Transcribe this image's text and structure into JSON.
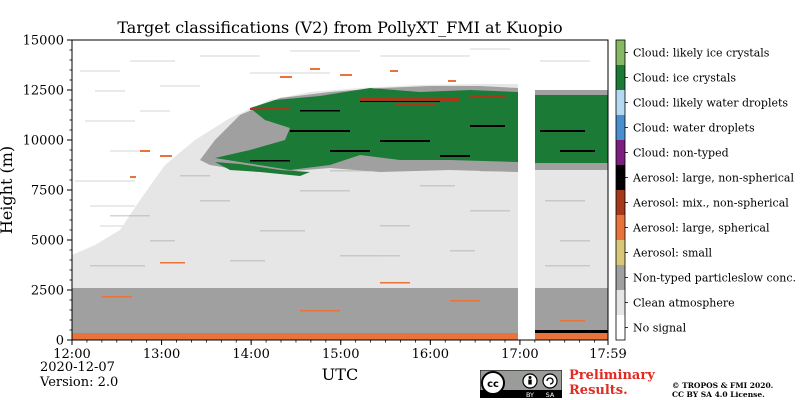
{
  "chart_data": {
    "type": "heatmap",
    "title": "Target classifications (V2) from PollyXT_FMI at Kuopio",
    "xlabel": "UTC",
    "ylabel": "Height (m)",
    "x_ticks": [
      "12:00",
      "13:00",
      "14:00",
      "15:00",
      "16:00",
      "17:00",
      "17:59"
    ],
    "y_ticks": [
      "0",
      "2500",
      "5000",
      "7500",
      "10000",
      "12500",
      "15000"
    ],
    "ylim": [
      0,
      15000
    ],
    "legend_placement": "right",
    "classes": [
      {
        "label": "No signal",
        "color": "#ffffff"
      },
      {
        "label": "Clean atmosphere",
        "color": "#e6e6e6"
      },
      {
        "label": "Non-typed particleslow conc.",
        "color": "#a0a0a0"
      },
      {
        "label": "Aerosol: small",
        "color": "#d9c777"
      },
      {
        "label": "Aerosol: large, spherical",
        "color": "#e8743b"
      },
      {
        "label": "Aerosol: mix., non-spherical",
        "color": "#a43a1b"
      },
      {
        "label": "Aerosol: large, non-spherical",
        "color": "#000000"
      },
      {
        "label": "Cloud: non-typed",
        "color": "#7b1e7e"
      },
      {
        "label": "Cloud: water droplets",
        "color": "#4a8fcd"
      },
      {
        "label": "Cloud: likely water droplets",
        "color": "#b5d9ef"
      },
      {
        "label": "Cloud: ice crystals",
        "color": "#1b7a36"
      },
      {
        "label": "Cloud: likely ice crystals",
        "color": "#86b865"
      }
    ]
  },
  "footer": {
    "date": "2020-12-07",
    "version": "Version: 2.0",
    "preliminary_line1": "Preliminary",
    "preliminary_line2": "Results.",
    "copyright_line1": "© TROPOS & FMI 2020.",
    "copyright_line2": "CC BY SA 4.0 License.",
    "cc_by": "BY",
    "cc_sa": "SA"
  }
}
